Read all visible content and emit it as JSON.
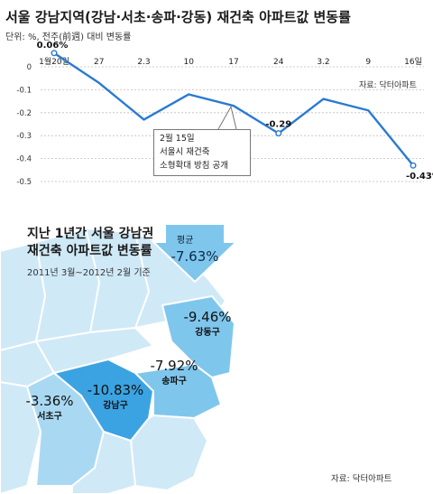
{
  "header": {
    "title": "서울 강남지역(강남·서초·송파·강동) 재건축 아파트값 변동률",
    "unit": "단위: %, 전주(前週) 대비 변동률"
  },
  "chart_data": {
    "type": "line",
    "x": [
      "1월20일",
      "27",
      "2.3",
      "10",
      "17",
      "24",
      "3.2",
      "9",
      "16일"
    ],
    "values": [
      0.06,
      -0.07,
      -0.23,
      -0.12,
      -0.17,
      -0.29,
      -0.14,
      -0.19,
      -0.43
    ],
    "y_ticks": [
      "0",
      "-0.1",
      "-0.2",
      "-0.3",
      "-0.4",
      "-0.5"
    ],
    "ylim": [
      -0.5,
      0.06
    ],
    "data_labels": [
      {
        "index": 0,
        "text": "0.06%"
      },
      {
        "index": 5,
        "text": "-0.29"
      },
      {
        "index": 8,
        "text": "-0.43%"
      }
    ],
    "grid": true,
    "line_color": "#2a7ad0",
    "source": "자료: 닥터아파트",
    "callout": {
      "index": 4,
      "lines": [
        "2월 15일",
        "서울시 재건축",
        "소형확대 방침 공개"
      ]
    }
  },
  "map_panel": {
    "title_line1": "지난 1년간 서울 강남권",
    "title_line2": "재건축 아파트값 변동률",
    "subtitle": "2011년 3월~2012년 2월 기준",
    "average": {
      "label": "평균",
      "value": "-7.63%"
    },
    "districts": [
      {
        "name": "강동구",
        "value": "-9.46%"
      },
      {
        "name": "송파구",
        "value": "-7.92%"
      },
      {
        "name": "강남구",
        "value": "-10.83%"
      },
      {
        "name": "서초구",
        "value": "-3.36%"
      }
    ],
    "source": "자료: 닥터아파트",
    "colors": {
      "base": "#cfe9f7",
      "light": "#a9d9f2",
      "mid": "#7fc6ec",
      "dark": "#3ba3e2",
      "border": "#ffffff"
    }
  }
}
